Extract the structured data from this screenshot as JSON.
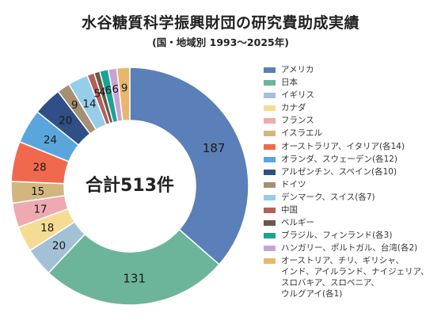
{
  "title": "水谷糖質科学振興財団の研究費助成実績",
  "subtitle": "(国・地域別 1993〜2025年)",
  "center_label": "合計513件",
  "chart_data": {
    "type": "pie",
    "title": "水谷糖質科学振興財団の研究費助成実績",
    "subtitle": "(国・地域別 1993〜2025年)",
    "total": 513,
    "slices": [
      {
        "label": "アメリカ",
        "value": 187,
        "color": "#5b7fb8"
      },
      {
        "label": "日本",
        "value": 131,
        "color": "#6cb59a"
      },
      {
        "label": "イギリス",
        "value": 20,
        "color": "#a3c1d6"
      },
      {
        "label": "カナダ",
        "value": 18,
        "color": "#f5dc92"
      },
      {
        "label": "フランス",
        "value": 17,
        "color": "#eeaab0"
      },
      {
        "label": "イスラエル",
        "value": 15,
        "color": "#d2b67e"
      },
      {
        "label": "オーストラリア、イタリア(各14)",
        "value": 28,
        "color": "#f0694e"
      },
      {
        "label": "オランダ、スウェーデン(各12)",
        "value": 24,
        "color": "#5aa6dc"
      },
      {
        "label": "アルゼンチン、スペイン(各10)",
        "value": 20,
        "color": "#2f4f86"
      },
      {
        "label": "ドイツ",
        "value": 9,
        "color": "#a69073"
      },
      {
        "label": "デンマーク、スイス(各7)",
        "value": 14,
        "color": "#96cde9"
      },
      {
        "label": "中国",
        "value": 5,
        "color": "#b3605a"
      },
      {
        "label": "ベルギー",
        "value": 4,
        "color": "#6a5849"
      },
      {
        "label": "ブラジル、フィンランド(各3)",
        "value": 6,
        "color": "#1aa394"
      },
      {
        "label": "ハンガリー、ポルトガル、台湾(各2)",
        "value": 6,
        "color": "#c9a3d6"
      },
      {
        "label": "オーストリア、チリ、ギリシャ、\nインド、アイルランド、ナイジェリア、\nスロバキア、スロベニア、\nウルグアイ(各1)",
        "value": 9,
        "color": "#e6b86f"
      }
    ]
  }
}
